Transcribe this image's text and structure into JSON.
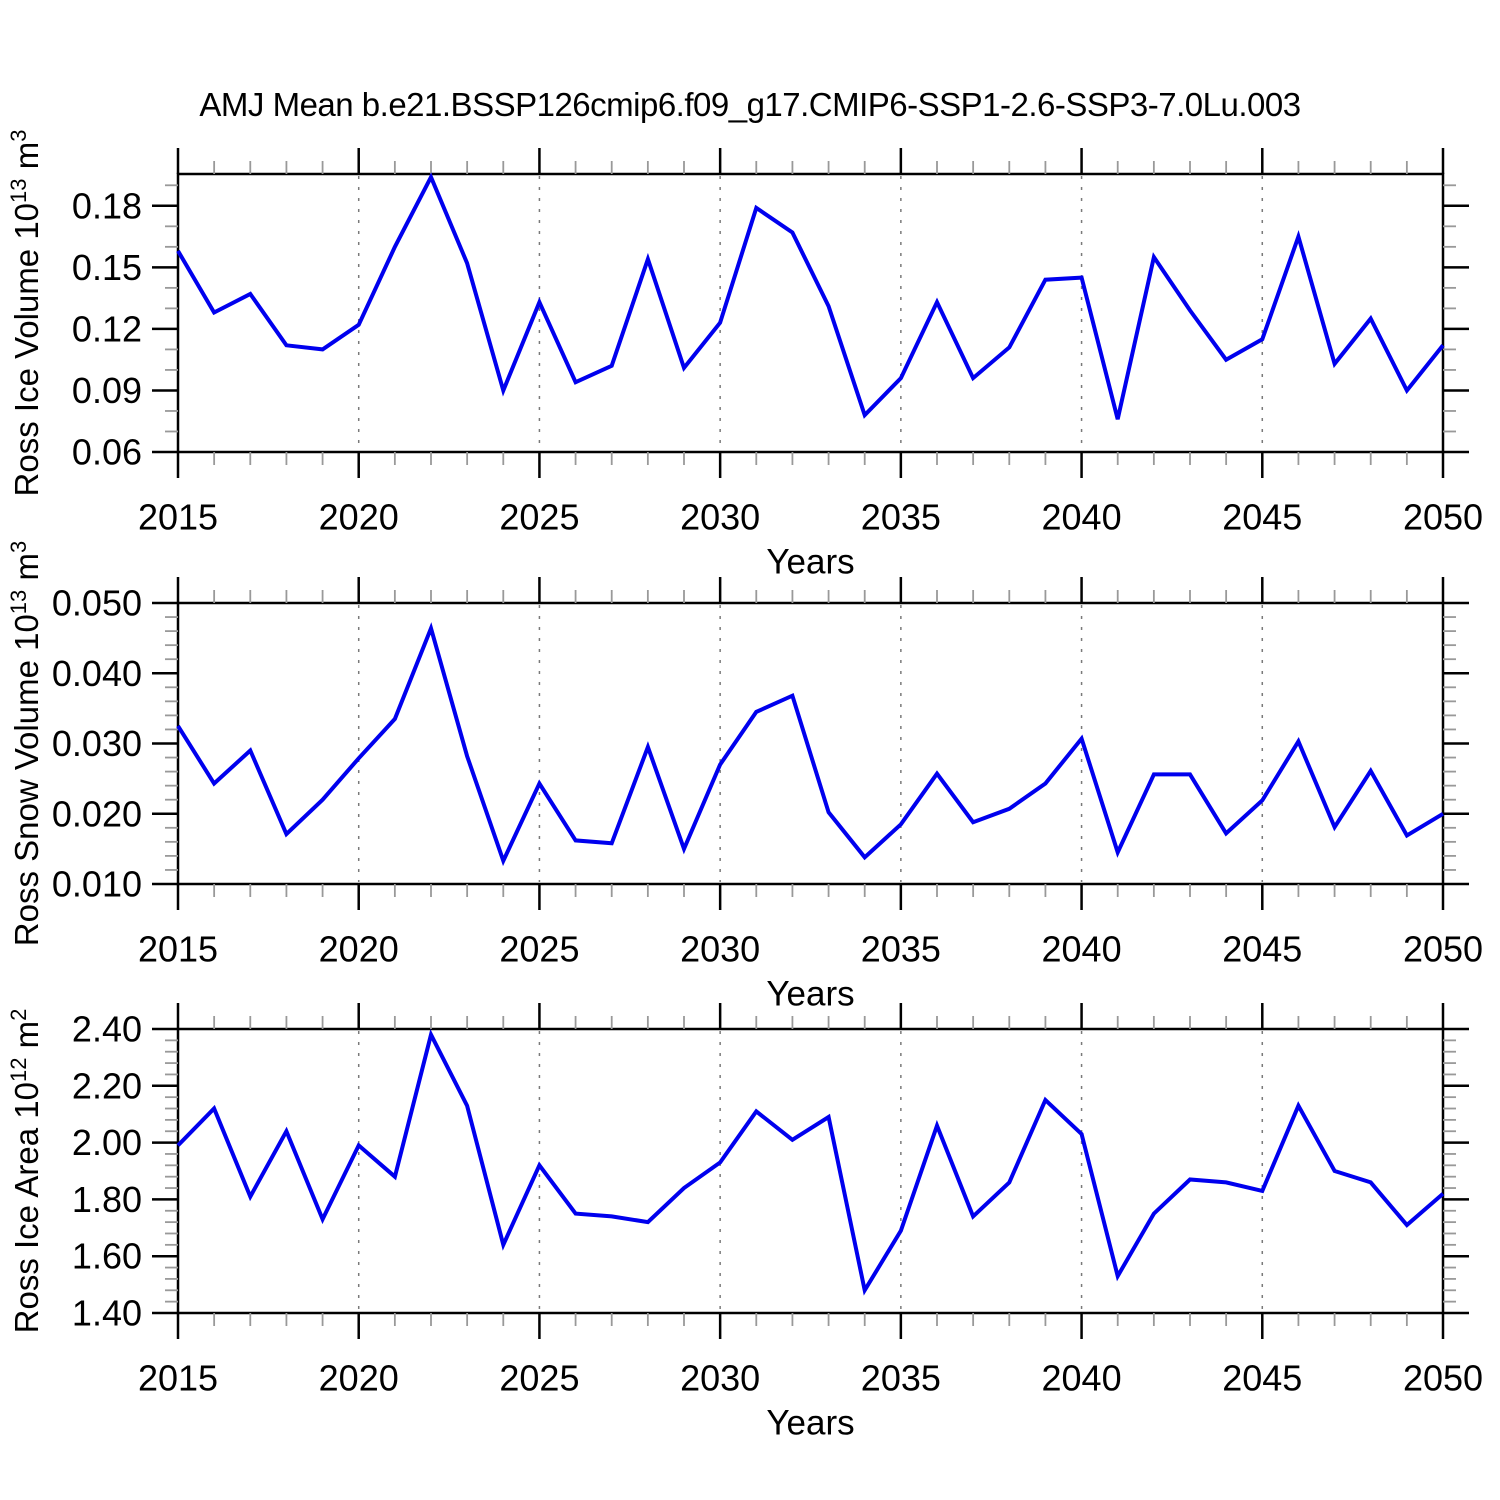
{
  "title": "AMJ Mean b.e21.BSSP126cmip6.f09_g17.CMIP6-SSP1-2.6-SSP3-7.0Lu.003",
  "colors": {
    "line": "#0000ee",
    "frame": "#000000",
    "grid": "#7a7a7a",
    "minor_tick": "#999999",
    "text": "#000000"
  },
  "years": [
    2015,
    2016,
    2017,
    2018,
    2019,
    2020,
    2021,
    2022,
    2023,
    2024,
    2025,
    2026,
    2027,
    2028,
    2029,
    2030,
    2031,
    2032,
    2033,
    2034,
    2035,
    2036,
    2037,
    2038,
    2039,
    2040,
    2041,
    2042,
    2043,
    2044,
    2045,
    2046,
    2047,
    2048,
    2049,
    2050
  ],
  "x_axis": {
    "label": "Years",
    "major_ticks": [
      2015,
      2020,
      2025,
      2030,
      2035,
      2040,
      2045,
      2050
    ],
    "grid_years": [
      2020,
      2025,
      2030,
      2035,
      2040,
      2045
    ],
    "range": [
      2015,
      2050
    ],
    "minor_step": 1
  },
  "chart_data": [
    {
      "type": "line",
      "name": "ross-ice-volume",
      "ylabel_parts": [
        {
          "t": "Ross Ice Volume 10"
        },
        {
          "t": "13",
          "sup": true
        },
        {
          "t": " m"
        },
        {
          "t": "3",
          "sup": true
        }
      ],
      "xlabel": "Years",
      "ylim": [
        0.06,
        0.1955
      ],
      "ytick_values": [
        0.06,
        0.09,
        0.12,
        0.15,
        0.18
      ],
      "ytick_decimals": 2,
      "yminor_step": 0.01,
      "values": [
        0.158,
        0.128,
        0.137,
        0.112,
        0.11,
        0.122,
        0.16,
        0.194,
        0.152,
        0.09,
        0.133,
        0.094,
        0.102,
        0.154,
        0.101,
        0.123,
        0.179,
        0.167,
        0.131,
        0.078,
        0.096,
        0.133,
        0.096,
        0.111,
        0.144,
        0.145,
        0.076,
        0.155,
        0.129,
        0.105,
        0.115,
        0.165,
        0.103,
        0.125,
        0.09,
        0.112
      ]
    },
    {
      "type": "line",
      "name": "ross-snow-volume",
      "ylabel_parts": [
        {
          "t": "Ross Snow Volume 10"
        },
        {
          "t": "13",
          "sup": true
        },
        {
          "t": " m"
        },
        {
          "t": "3",
          "sup": true
        }
      ],
      "xlabel": "Years",
      "ylim": [
        0.01,
        0.05
      ],
      "ytick_values": [
        0.01,
        0.02,
        0.03,
        0.04,
        0.05
      ],
      "ytick_decimals": 3,
      "yminor_step": 0.002,
      "values": [
        0.0325,
        0.0243,
        0.029,
        0.0171,
        0.022,
        0.0279,
        0.0335,
        0.0464,
        0.0282,
        0.0133,
        0.0243,
        0.0162,
        0.0158,
        0.0295,
        0.015,
        0.027,
        0.0345,
        0.0368,
        0.0202,
        0.0138,
        0.0185,
        0.0257,
        0.0188,
        0.0207,
        0.0243,
        0.0307,
        0.0145,
        0.0256,
        0.0256,
        0.0172,
        0.0219,
        0.0303,
        0.0181,
        0.0261,
        0.0169,
        0.02
      ]
    },
    {
      "type": "line",
      "name": "ross-ice-area",
      "ylabel_parts": [
        {
          "t": "Ross Ice Area 10"
        },
        {
          "t": "12",
          "sup": true
        },
        {
          "t": " m"
        },
        {
          "t": "2",
          "sup": true
        }
      ],
      "xlabel": "Years",
      "ylim": [
        1.4,
        2.4
      ],
      "ytick_values": [
        1.4,
        1.6,
        1.8,
        2.0,
        2.2,
        2.4
      ],
      "ytick_decimals": 2,
      "yminor_step": 0.04,
      "values": [
        1.99,
        2.12,
        1.81,
        2.04,
        1.73,
        1.99,
        1.88,
        2.38,
        2.13,
        1.64,
        1.92,
        1.75,
        1.74,
        1.72,
        1.84,
        1.93,
        2.11,
        2.01,
        2.09,
        1.48,
        1.69,
        2.06,
        1.74,
        1.86,
        2.15,
        2.03,
        1.53,
        1.75,
        1.87,
        1.86,
        1.83,
        2.13,
        1.9,
        1.86,
        1.71,
        1.82
      ]
    }
  ]
}
